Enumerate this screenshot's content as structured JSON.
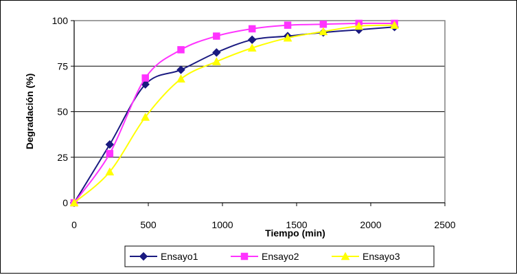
{
  "chart_data": {
    "type": "line",
    "title": "",
    "xlabel": "Tiempo (min)",
    "ylabel": "Degradación (%)",
    "xlim": [
      0,
      2500
    ],
    "ylim": [
      0,
      100
    ],
    "x_ticks": [
      "0",
      "500",
      "1000",
      "1500",
      "2000",
      "2500"
    ],
    "y_ticks": [
      "0",
      "25",
      "50",
      "75",
      "100"
    ],
    "grid": "horizontal",
    "legend_position": "bottom",
    "series": [
      {
        "name": "Ensayo1",
        "color": "#1a1a80",
        "marker": "diamond",
        "x": [
          0,
          240,
          480,
          720,
          960,
          1200,
          1440,
          1680,
          1920,
          2160
        ],
        "y": [
          0,
          32,
          65,
          73,
          82.5,
          89.5,
          91.5,
          93.5,
          95,
          96.5
        ]
      },
      {
        "name": "Ensayo2",
        "color": "#ff33ff",
        "marker": "square",
        "x": [
          0,
          240,
          480,
          720,
          960,
          1200,
          1440,
          1680,
          1920,
          2160
        ],
        "y": [
          0,
          27,
          68.5,
          84,
          91.5,
          95.5,
          97.5,
          98,
          98.5,
          98.5
        ]
      },
      {
        "name": "Ensayo3",
        "color": "#ffff00",
        "marker": "triangle",
        "x": [
          0,
          240,
          480,
          720,
          960,
          1200,
          1440,
          1680,
          1920,
          2160
        ],
        "y": [
          0,
          17,
          47,
          68,
          77.5,
          85,
          90.5,
          94,
          97,
          97.5
        ]
      }
    ]
  }
}
